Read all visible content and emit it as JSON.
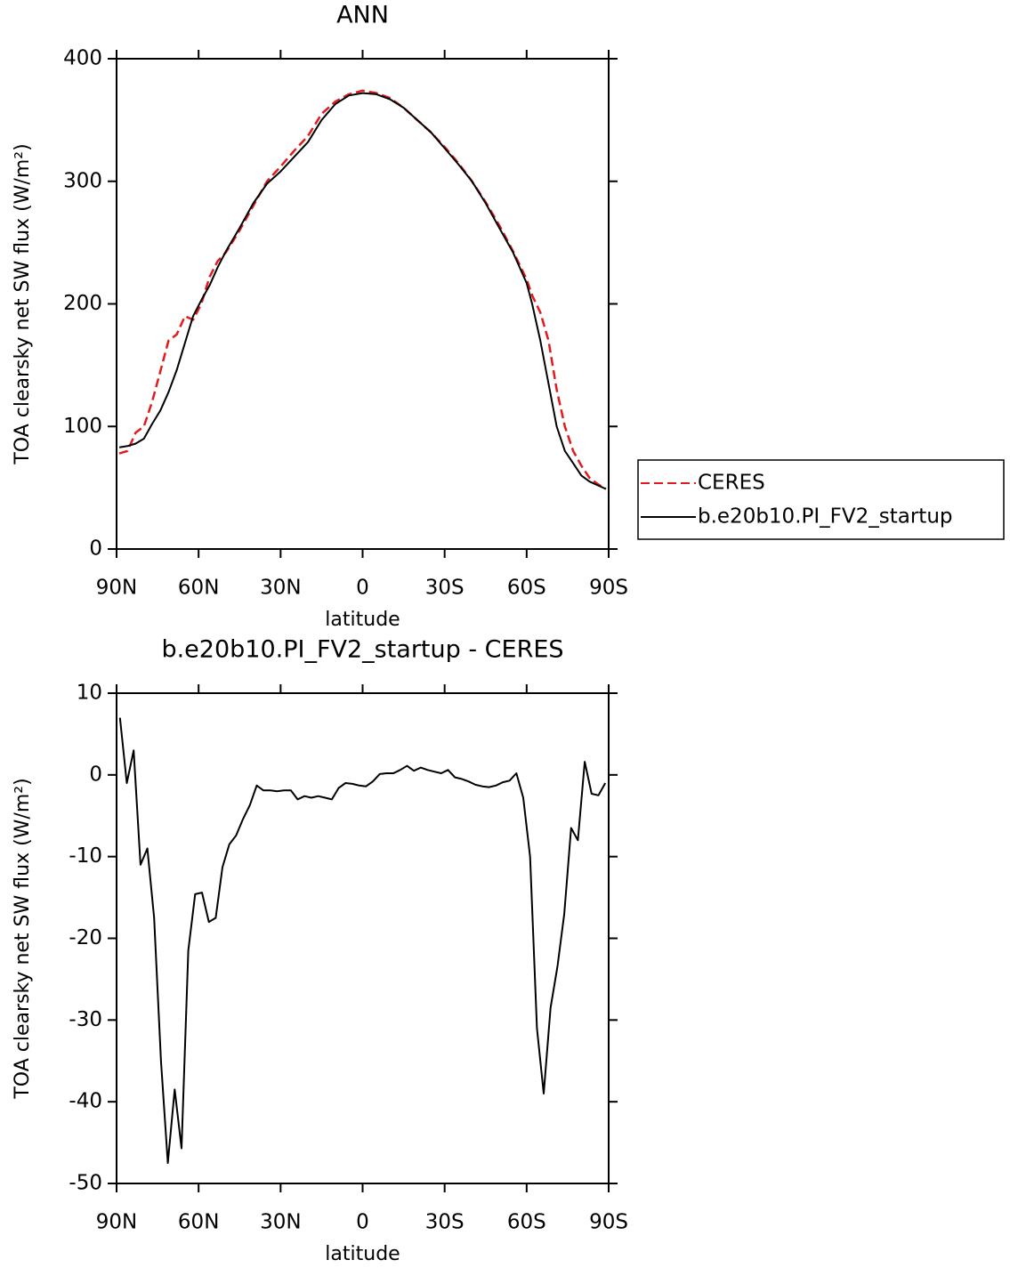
{
  "chart_data": [
    {
      "type": "line",
      "title": "ANN",
      "xlabel": "latitude",
      "ylabel": "TOA clearsky net SW flux (W/m²)",
      "x": [
        89,
        86,
        83,
        80,
        77,
        74,
        71,
        68,
        65,
        62,
        59,
        56,
        53,
        50,
        45,
        40,
        35,
        30,
        25,
        20,
        15,
        10,
        5,
        0,
        -5,
        -10,
        -15,
        -20,
        -25,
        -30,
        -35,
        -40,
        -45,
        -50,
        -55,
        -60,
        -62,
        -65,
        -68,
        -71,
        -74,
        -77,
        -80,
        -83,
        -86,
        -89
      ],
      "series": [
        {
          "name": "CERES",
          "color": "#e31a1c",
          "dashed": true,
          "values": [
            78,
            80,
            95,
            100,
            120,
            145,
            170,
            175,
            190,
            187,
            200,
            222,
            235,
            242,
            260,
            280,
            300,
            312,
            325,
            337,
            355,
            365,
            371,
            374,
            372,
            368,
            360,
            350,
            340,
            328,
            315,
            300,
            283,
            264,
            243,
            220,
            207,
            193,
            170,
            130,
            100,
            80,
            68,
            58,
            53,
            49
          ]
        },
        {
          "name": "b.e20b10.PI_FV2_startup",
          "color": "#000000",
          "dashed": false,
          "values": [
            83,
            84,
            86,
            90,
            102,
            113,
            128,
            146,
            168,
            190,
            203,
            215,
            230,
            243,
            262,
            282,
            298,
            308,
            320,
            332,
            350,
            363,
            370,
            372,
            371,
            367,
            360,
            350,
            340,
            327,
            314,
            300,
            282,
            262,
            242,
            217,
            200,
            170,
            135,
            100,
            80,
            70,
            60,
            55,
            52,
            49
          ]
        }
      ],
      "xlim": [
        90,
        -90
      ],
      "xticks": [
        {
          "value": 90,
          "label": "90N"
        },
        {
          "value": 60,
          "label": "60N"
        },
        {
          "value": 30,
          "label": "30N"
        },
        0,
        {
          "value": -30,
          "label": "30S"
        },
        {
          "value": -60,
          "label": "60S"
        },
        {
          "value": -90,
          "label": "90S"
        }
      ],
      "ylim": [
        0,
        400
      ],
      "yticks": [
        0,
        100,
        200,
        300,
        400
      ],
      "legend": "right"
    },
    {
      "type": "line",
      "title": "b.e20b10.PI_FV2_startup - CERES",
      "xlabel": "latitude",
      "ylabel": "TOA clearsky net SW flux (W/m²)",
      "x": [
        88.75,
        86.25,
        83.75,
        81.25,
        78.75,
        76.25,
        73.75,
        71.25,
        68.75,
        66.25,
        63.75,
        61.25,
        58.75,
        56.25,
        53.75,
        51.25,
        48.75,
        46.25,
        43.75,
        41.25,
        38.75,
        36.25,
        33.75,
        31.25,
        28.75,
        26.25,
        23.75,
        21.25,
        18.75,
        16.25,
        13.75,
        11.25,
        8.75,
        6.25,
        3.75,
        1.25,
        -1.25,
        -3.75,
        -6.25,
        -8.75,
        -11.25,
        -13.75,
        -16.25,
        -18.75,
        -21.25,
        -23.75,
        -26.25,
        -28.75,
        -31.25,
        -33.75,
        -36.25,
        -38.75,
        -41.25,
        -43.75,
        -46.25,
        -48.75,
        -51.25,
        -53.75,
        -56.25,
        -58.75,
        -61.25,
        -63.75,
        -66.25,
        -68.75,
        -71.25,
        -73.75,
        -76.25,
        -78.75,
        -81.25,
        -83.75,
        -86.25,
        -88.75
      ],
      "values": [
        7,
        -1,
        3,
        -11,
        -9,
        -17.5,
        -35,
        -47.5,
        -38.5,
        -45.7,
        -21.5,
        -14.6,
        -14.4,
        -18,
        -17.5,
        -11.3,
        -8.5,
        -7.4,
        -5.4,
        -3.7,
        -1.3,
        -1.9,
        -1.9,
        -2,
        -1.9,
        -1.9,
        -3,
        -2.6,
        -2.8,
        -2.6,
        -2.8,
        -3,
        -1.6,
        -1,
        -1.1,
        -1.3,
        -1.4,
        -0.8,
        0.1,
        0.2,
        0.2,
        0.6,
        1.1,
        0.5,
        0.9,
        0.6,
        0.4,
        0.2,
        0.6,
        -0.3,
        -0.5,
        -0.8,
        -1.2,
        -1.4,
        -1.5,
        -1.3,
        -0.9,
        -0.7,
        0.2,
        -2.8,
        -10,
        -31,
        -39,
        -28.5,
        -23.5,
        -17,
        -6.5,
        -8,
        1.6,
        -2.3,
        -2.5,
        -1
      ],
      "color": "#000000",
      "xlim": [
        90,
        -90
      ],
      "xticks": [
        {
          "value": 90,
          "label": "90N"
        },
        {
          "value": 60,
          "label": "60N"
        },
        {
          "value": 30,
          "label": "30N"
        },
        0,
        {
          "value": -30,
          "label": "30S"
        },
        {
          "value": -60,
          "label": "60S"
        },
        {
          "value": -90,
          "label": "90S"
        }
      ],
      "ylim": [
        -50,
        10
      ],
      "yticks": [
        10,
        0,
        -10,
        -20,
        -30,
        -40,
        -50
      ]
    }
  ]
}
